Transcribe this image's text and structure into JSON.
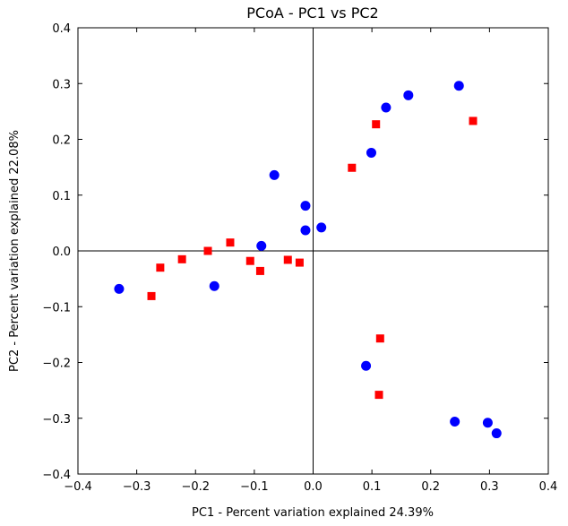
{
  "chart_data": {
    "type": "scatter",
    "title": "PCoA - PC1 vs PC2",
    "xlabel": "PC1 - Percent variation explained 24.39%",
    "ylabel": "PC2 - Percent variation explained 22.08%",
    "xlim": [
      -0.4,
      0.4
    ],
    "ylim": [
      -0.4,
      0.4
    ],
    "xticks": [
      -0.4,
      -0.3,
      -0.2,
      -0.1,
      0.0,
      0.1,
      0.2,
      0.3,
      0.4
    ],
    "yticks": [
      -0.4,
      -0.3,
      -0.2,
      -0.1,
      0.0,
      0.1,
      0.2,
      0.3,
      0.4
    ],
    "xtick_labels": [
      "−0.4",
      "−0.3",
      "−0.2",
      "−0.1",
      "0.0",
      "0.1",
      "0.2",
      "0.3",
      "0.4"
    ],
    "ytick_labels": [
      "−0.4",
      "−0.3",
      "−0.2",
      "−0.1",
      "0.0",
      "0.1",
      "0.2",
      "0.3",
      "0.4"
    ],
    "grid": false,
    "reference_lines": {
      "x": 0.0,
      "y": 0.0
    },
    "series": [
      {
        "marker": "circle",
        "color": "#0000ff",
        "points": [
          [
            -0.33,
            -0.068
          ],
          [
            -0.168,
            -0.063
          ],
          [
            -0.088,
            0.009
          ],
          [
            -0.066,
            0.136
          ],
          [
            -0.013,
            0.081
          ],
          [
            -0.013,
            0.037
          ],
          [
            0.014,
            0.042
          ],
          [
            0.099,
            0.176
          ],
          [
            0.124,
            0.257
          ],
          [
            0.162,
            0.279
          ],
          [
            0.248,
            0.296
          ],
          [
            0.09,
            -0.206
          ],
          [
            0.241,
            -0.306
          ],
          [
            0.297,
            -0.308
          ],
          [
            0.312,
            -0.327
          ]
        ]
      },
      {
        "marker": "square",
        "color": "#ff0000",
        "points": [
          [
            -0.275,
            -0.081
          ],
          [
            -0.26,
            -0.03
          ],
          [
            -0.223,
            -0.015
          ],
          [
            -0.179,
            0.0
          ],
          [
            -0.141,
            0.015
          ],
          [
            -0.107,
            -0.018
          ],
          [
            -0.09,
            -0.036
          ],
          [
            -0.043,
            -0.016
          ],
          [
            -0.023,
            -0.021
          ],
          [
            0.066,
            0.149
          ],
          [
            0.107,
            0.227
          ],
          [
            0.114,
            -0.157
          ],
          [
            0.112,
            -0.258
          ],
          [
            0.272,
            0.233
          ]
        ]
      }
    ]
  }
}
